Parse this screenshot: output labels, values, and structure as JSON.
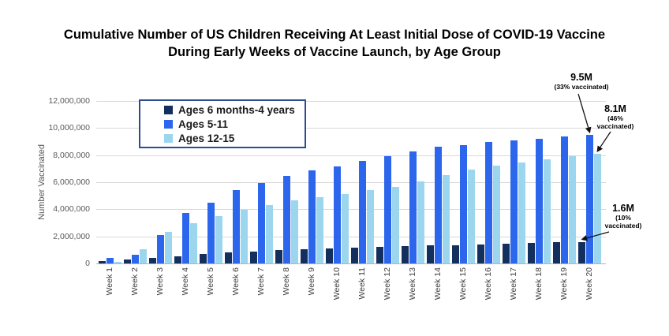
{
  "title": {
    "line1": "Cumulative Number of US Children Receiving At Least Initial Dose of COVID-19 Vaccine",
    "line2": "During Early Weeks of Vaccine Launch, by Age Group"
  },
  "y_axis": {
    "label": "Number Vaccinated",
    "ticks": [
      {
        "label": "12,000,000",
        "value": 12000000
      },
      {
        "label": "10,000,000",
        "value": 10000000
      },
      {
        "label": "8,000,000",
        "value": 8000000
      },
      {
        "label": "6,000,000",
        "value": 6000000
      },
      {
        "label": "4,000,000",
        "value": 4000000
      },
      {
        "label": "2,000,000",
        "value": 2000000
      },
      {
        "label": "0",
        "value": 0
      }
    ]
  },
  "chart_data": {
    "type": "bar",
    "title": "Cumulative Number of US Children Receiving At Least Initial Dose of COVID-19 Vaccine During Early Weeks of Vaccine Launch, by Age Group",
    "xlabel": "",
    "ylabel": "Number Vaccinated",
    "ylim": [
      0,
      12000000
    ],
    "grid": true,
    "legend_position": "upper-left-inside",
    "categories": [
      "Week 1",
      "Week 2",
      "Week 3",
      "Week 4",
      "Week 5",
      "Week 6",
      "Week 7",
      "Week 8",
      "Week 9",
      "Week 10",
      "Week 11",
      "Week 12",
      "Week 13",
      "Week 14",
      "Week 15",
      "Week 16",
      "Week 17",
      "Week 18",
      "Week 19",
      "Week 20"
    ],
    "series": [
      {
        "name": "Ages 6 months-4 years",
        "color": "#132f5e",
        "values": [
          150000,
          300000,
          400000,
          550000,
          700000,
          800000,
          900000,
          1000000,
          1050000,
          1100000,
          1150000,
          1250000,
          1300000,
          1350000,
          1350000,
          1400000,
          1450000,
          1500000,
          1550000,
          1600000
        ]
      },
      {
        "name": "Ages 5-11",
        "color": "#2b66ec",
        "values": [
          400000,
          650000,
          2100000,
          3700000,
          4500000,
          5400000,
          5950000,
          6450000,
          6850000,
          7150000,
          7600000,
          7950000,
          8300000,
          8600000,
          8750000,
          8950000,
          9100000,
          9200000,
          9350000,
          9500000
        ]
      },
      {
        "name": "Ages 12-15",
        "color": "#9cd6ee",
        "values": [
          100000,
          1050000,
          2350000,
          3000000,
          3500000,
          3950000,
          4300000,
          4650000,
          4900000,
          5100000,
          5400000,
          5650000,
          6050000,
          6500000,
          6950000,
          7200000,
          7450000,
          7700000,
          7950000,
          8100000
        ]
      }
    ],
    "annotations": [
      {
        "lines": [
          "9.5M",
          "(33% vaccinated)"
        ],
        "series": "Ages 5-11",
        "category": "Week 20"
      },
      {
        "lines": [
          "8.1M",
          "(46%",
          "vaccinated)"
        ],
        "series": "Ages 12-15",
        "category": "Week 20"
      },
      {
        "lines": [
          "1.6M",
          "(10%",
          "vaccinated)"
        ],
        "series": "Ages 6 months-4 years",
        "category": "Week 20"
      }
    ]
  }
}
